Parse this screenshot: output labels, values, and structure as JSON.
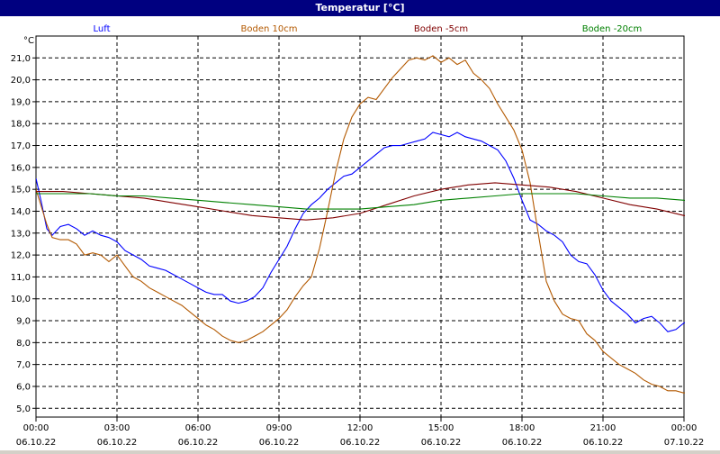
{
  "window": {
    "title": "Temperatur [°C]"
  },
  "chart_data": {
    "type": "line",
    "title": "Temperatur [°C]",
    "ylabel": "°C",
    "xlabel": "",
    "ylim": [
      4.6,
      22.0
    ],
    "xlim": [
      0,
      24
    ],
    "grid": true,
    "legend_position": "top",
    "yticks": [
      "5,0",
      "6,0",
      "7,0",
      "8,0",
      "9,0",
      "10,0",
      "11,0",
      "12,0",
      "13,0",
      "14,0",
      "15,0",
      "16,0",
      "17,0",
      "18,0",
      "19,0",
      "20,0",
      "21,0"
    ],
    "xticks": [
      {
        "time": "00:00",
        "date": "06.10.22"
      },
      {
        "time": "03:00",
        "date": "06.10.22"
      },
      {
        "time": "06:00",
        "date": "06.10.22"
      },
      {
        "time": "09:00",
        "date": "06.10.22"
      },
      {
        "time": "12:00",
        "date": "06.10.22"
      },
      {
        "time": "15:00",
        "date": "06.10.22"
      },
      {
        "time": "18:00",
        "date": "06.10.22"
      },
      {
        "time": "21:00",
        "date": "06.10.22"
      },
      {
        "time": "00:00",
        "date": "07.10.22"
      }
    ],
    "series": [
      {
        "name": "Luft",
        "color": "#0000ff",
        "points": [
          [
            0,
            15.5
          ],
          [
            0.2,
            14.4
          ],
          [
            0.4,
            13.2
          ],
          [
            0.6,
            12.9
          ],
          [
            0.9,
            13.3
          ],
          [
            1.2,
            13.4
          ],
          [
            1.5,
            13.2
          ],
          [
            1.8,
            12.9
          ],
          [
            2.1,
            13.1
          ],
          [
            2.4,
            12.9
          ],
          [
            2.7,
            12.8
          ],
          [
            3.0,
            12.6
          ],
          [
            3.3,
            12.2
          ],
          [
            3.6,
            12.0
          ],
          [
            3.9,
            11.8
          ],
          [
            4.2,
            11.5
          ],
          [
            4.5,
            11.4
          ],
          [
            4.8,
            11.3
          ],
          [
            5.1,
            11.1
          ],
          [
            5.4,
            10.9
          ],
          [
            5.7,
            10.7
          ],
          [
            6.0,
            10.5
          ],
          [
            6.3,
            10.3
          ],
          [
            6.6,
            10.2
          ],
          [
            6.9,
            10.2
          ],
          [
            7.2,
            9.9
          ],
          [
            7.5,
            9.8
          ],
          [
            7.8,
            9.9
          ],
          [
            8.1,
            10.1
          ],
          [
            8.4,
            10.5
          ],
          [
            8.7,
            11.2
          ],
          [
            9.0,
            11.8
          ],
          [
            9.3,
            12.4
          ],
          [
            9.6,
            13.2
          ],
          [
            9.9,
            13.9
          ],
          [
            10.2,
            14.3
          ],
          [
            10.5,
            14.6
          ],
          [
            10.8,
            15.0
          ],
          [
            11.1,
            15.3
          ],
          [
            11.4,
            15.6
          ],
          [
            11.7,
            15.7
          ],
          [
            12.0,
            16.0
          ],
          [
            12.3,
            16.3
          ],
          [
            12.6,
            16.6
          ],
          [
            12.9,
            16.9
          ],
          [
            13.2,
            17.0
          ],
          [
            13.5,
            17.0
          ],
          [
            13.8,
            17.1
          ],
          [
            14.1,
            17.2
          ],
          [
            14.4,
            17.3
          ],
          [
            14.7,
            17.6
          ],
          [
            15.0,
            17.5
          ],
          [
            15.3,
            17.4
          ],
          [
            15.6,
            17.6
          ],
          [
            15.9,
            17.4
          ],
          [
            16.2,
            17.3
          ],
          [
            16.5,
            17.2
          ],
          [
            16.8,
            17.0
          ],
          [
            17.1,
            16.8
          ],
          [
            17.4,
            16.3
          ],
          [
            17.7,
            15.5
          ],
          [
            18.0,
            14.5
          ],
          [
            18.3,
            13.6
          ],
          [
            18.6,
            13.4
          ],
          [
            18.9,
            13.1
          ],
          [
            19.2,
            12.9
          ],
          [
            19.5,
            12.6
          ],
          [
            19.8,
            12.0
          ],
          [
            20.1,
            11.7
          ],
          [
            20.4,
            11.6
          ],
          [
            20.7,
            11.1
          ],
          [
            21.0,
            10.4
          ],
          [
            21.3,
            9.9
          ],
          [
            21.6,
            9.6
          ],
          [
            21.9,
            9.3
          ],
          [
            22.2,
            8.9
          ],
          [
            22.5,
            9.1
          ],
          [
            22.8,
            9.2
          ],
          [
            23.1,
            8.9
          ],
          [
            23.4,
            8.5
          ],
          [
            23.7,
            8.6
          ],
          [
            24.0,
            8.9
          ],
          [
            24.3,
            9.0
          ],
          [
            24.6,
            8.7
          ]
        ]
      },
      {
        "name": "Boden 10cm",
        "color": "#b35900",
        "points": [
          [
            0,
            15.0
          ],
          [
            0.2,
            14.2
          ],
          [
            0.4,
            13.4
          ],
          [
            0.6,
            12.8
          ],
          [
            0.9,
            12.7
          ],
          [
            1.2,
            12.7
          ],
          [
            1.5,
            12.5
          ],
          [
            1.8,
            12.0
          ],
          [
            2.1,
            12.1
          ],
          [
            2.4,
            12.0
          ],
          [
            2.7,
            11.7
          ],
          [
            3.0,
            12.0
          ],
          [
            3.3,
            11.5
          ],
          [
            3.6,
            11.0
          ],
          [
            3.9,
            10.8
          ],
          [
            4.2,
            10.5
          ],
          [
            4.5,
            10.3
          ],
          [
            4.8,
            10.1
          ],
          [
            5.1,
            9.9
          ],
          [
            5.4,
            9.7
          ],
          [
            5.7,
            9.4
          ],
          [
            6.0,
            9.1
          ],
          [
            6.3,
            8.8
          ],
          [
            6.6,
            8.6
          ],
          [
            6.9,
            8.3
          ],
          [
            7.2,
            8.1
          ],
          [
            7.5,
            8.0
          ],
          [
            7.8,
            8.1
          ],
          [
            8.1,
            8.3
          ],
          [
            8.4,
            8.5
          ],
          [
            8.7,
            8.8
          ],
          [
            9.0,
            9.1
          ],
          [
            9.3,
            9.5
          ],
          [
            9.6,
            10.1
          ],
          [
            9.9,
            10.6
          ],
          [
            10.2,
            11.0
          ],
          [
            10.5,
            12.3
          ],
          [
            10.8,
            14.0
          ],
          [
            11.1,
            15.8
          ],
          [
            11.4,
            17.3
          ],
          [
            11.7,
            18.3
          ],
          [
            12.0,
            18.9
          ],
          [
            12.3,
            19.2
          ],
          [
            12.6,
            19.1
          ],
          [
            12.9,
            19.6
          ],
          [
            13.2,
            20.1
          ],
          [
            13.5,
            20.5
          ],
          [
            13.8,
            20.9
          ],
          [
            14.1,
            21.0
          ],
          [
            14.4,
            20.9
          ],
          [
            14.7,
            21.1
          ],
          [
            15.0,
            20.8
          ],
          [
            15.3,
            21.0
          ],
          [
            15.6,
            20.7
          ],
          [
            15.9,
            20.9
          ],
          [
            16.2,
            20.3
          ],
          [
            16.5,
            20.0
          ],
          [
            16.8,
            19.6
          ],
          [
            17.1,
            18.9
          ],
          [
            17.4,
            18.3
          ],
          [
            17.7,
            17.7
          ],
          [
            18.0,
            16.8
          ],
          [
            18.3,
            15.3
          ],
          [
            18.6,
            13.0
          ],
          [
            18.9,
            10.8
          ],
          [
            19.2,
            9.9
          ],
          [
            19.5,
            9.3
          ],
          [
            19.8,
            9.1
          ],
          [
            20.1,
            9.0
          ],
          [
            20.4,
            8.4
          ],
          [
            20.7,
            8.1
          ],
          [
            21.0,
            7.6
          ],
          [
            21.3,
            7.3
          ],
          [
            21.6,
            7.0
          ],
          [
            21.9,
            6.8
          ],
          [
            22.2,
            6.6
          ],
          [
            22.5,
            6.3
          ],
          [
            22.8,
            6.1
          ],
          [
            23.1,
            6.0
          ],
          [
            23.4,
            5.8
          ],
          [
            23.7,
            5.8
          ],
          [
            24.0,
            5.7
          ],
          [
            24.3,
            5.8
          ],
          [
            24.6,
            5.4
          ]
        ]
      },
      {
        "name": "Boden -5cm",
        "color": "#800000",
        "points": [
          [
            0,
            14.9
          ],
          [
            1,
            14.9
          ],
          [
            2,
            14.8
          ],
          [
            3,
            14.7
          ],
          [
            4,
            14.6
          ],
          [
            5,
            14.4
          ],
          [
            6,
            14.2
          ],
          [
            7,
            14.0
          ],
          [
            8,
            13.8
          ],
          [
            9,
            13.7
          ],
          [
            10,
            13.6
          ],
          [
            11,
            13.7
          ],
          [
            12,
            13.9
          ],
          [
            13,
            14.3
          ],
          [
            14,
            14.7
          ],
          [
            15,
            15.0
          ],
          [
            16,
            15.2
          ],
          [
            17,
            15.3
          ],
          [
            18,
            15.2
          ],
          [
            19,
            15.1
          ],
          [
            20,
            14.9
          ],
          [
            21,
            14.6
          ],
          [
            22,
            14.3
          ],
          [
            23,
            14.1
          ],
          [
            24,
            13.8
          ],
          [
            24.6,
            13.8
          ]
        ]
      },
      {
        "name": "Boden -20cm",
        "color": "#008000",
        "points": [
          [
            0,
            14.8
          ],
          [
            1,
            14.8
          ],
          [
            2,
            14.8
          ],
          [
            3,
            14.7
          ],
          [
            4,
            14.7
          ],
          [
            5,
            14.6
          ],
          [
            6,
            14.5
          ],
          [
            7,
            14.4
          ],
          [
            8,
            14.3
          ],
          [
            9,
            14.2
          ],
          [
            10,
            14.1
          ],
          [
            11,
            14.1
          ],
          [
            12,
            14.1
          ],
          [
            13,
            14.2
          ],
          [
            14,
            14.3
          ],
          [
            15,
            14.5
          ],
          [
            16,
            14.6
          ],
          [
            17,
            14.7
          ],
          [
            18,
            14.8
          ],
          [
            19,
            14.8
          ],
          [
            20,
            14.8
          ],
          [
            21,
            14.7
          ],
          [
            22,
            14.6
          ],
          [
            23,
            14.6
          ],
          [
            24,
            14.5
          ],
          [
            24.6,
            14.4
          ]
        ]
      }
    ]
  }
}
